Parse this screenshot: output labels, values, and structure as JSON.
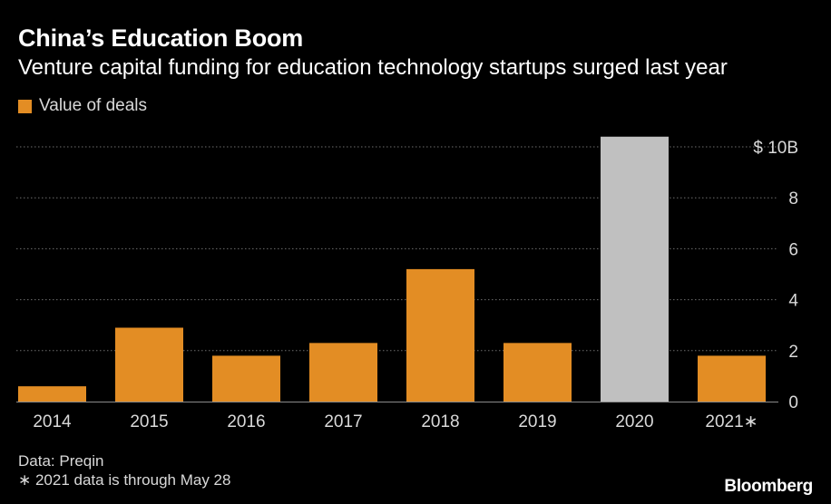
{
  "chart_data": {
    "type": "bar",
    "title": "China’s Education Boom",
    "subtitle": "Venture capital funding for education technology startups surged last year",
    "legend": [
      {
        "label": "Value of deals",
        "color": "#e38d24"
      }
    ],
    "categories": [
      "2014",
      "2015",
      "2016",
      "2017",
      "2018",
      "2019",
      "2020",
      "2021*"
    ],
    "category_labels": [
      "2014",
      "2015",
      "2016",
      "2017",
      "2018",
      "2019",
      "2020",
      "2021∗"
    ],
    "values": [
      0.6,
      2.9,
      1.8,
      2.3,
      5.2,
      2.3,
      10.4,
      1.8
    ],
    "highlight_index": 6,
    "bar_color": "#e38d24",
    "highlight_color": "#c0c0c0",
    "ylim": [
      0,
      10
    ],
    "yticks": [
      0,
      2,
      4,
      6,
      8,
      10
    ],
    "ytick_labels": [
      "0",
      "2",
      "4",
      "6",
      "8",
      "$ 10B"
    ],
    "ylabel": "",
    "xlabel": "",
    "grid": true,
    "legend_position": "top-left",
    "y_axis_side": "right"
  },
  "footer": {
    "source": "Data: Preqin",
    "note": "∗ 2021 data is through May 28",
    "brand": "Bloomberg"
  }
}
